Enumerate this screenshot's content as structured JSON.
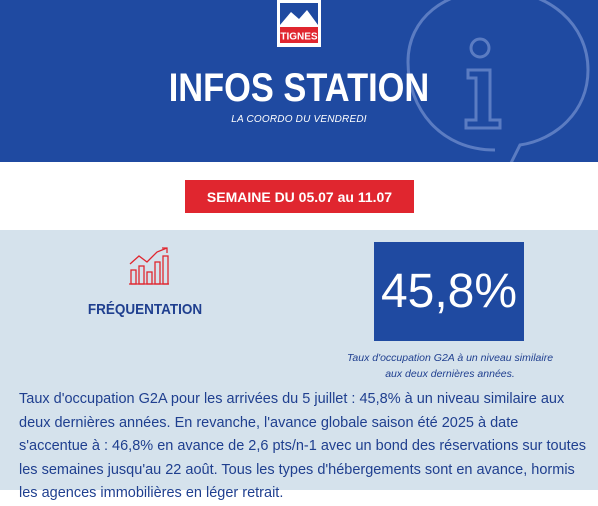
{
  "header": {
    "logo_text": "TIGNES",
    "title": "INFOS STATION",
    "subtitle": "LA COORDO DU VENDREDI",
    "decoration_icon": "info-bubble-icon"
  },
  "week": {
    "label": "SEMAINE DU 05.07 au 11.07"
  },
  "section": {
    "icon": "growth-chart-icon",
    "title": "FRÉQUENTATION",
    "stat_value": "45,8%",
    "stat_caption_line1": "Taux d'occupation G2A à un niveau similaire",
    "stat_caption_line2": "aux deux dernières années.",
    "body": "Taux d'occupation G2A pour les arrivées du 5 juillet : 45,8% à un niveau similaire aux deux dernières années. En revanche, l'avance globale saison été 2025 à date s'accentue à : 46,8% en avance de 2,6 pts/n-1 avec un bond des réservations sur toutes les semaines jusqu'au 22 août. Tous les types d'hébergements sont en avance, hormis les agences immobilières en léger retrait."
  },
  "colors": {
    "brand_blue": "#1f4aa1",
    "accent_red": "#e0262f",
    "content_bg": "#d5e2ec",
    "text_blue": "#1f3f8f"
  }
}
